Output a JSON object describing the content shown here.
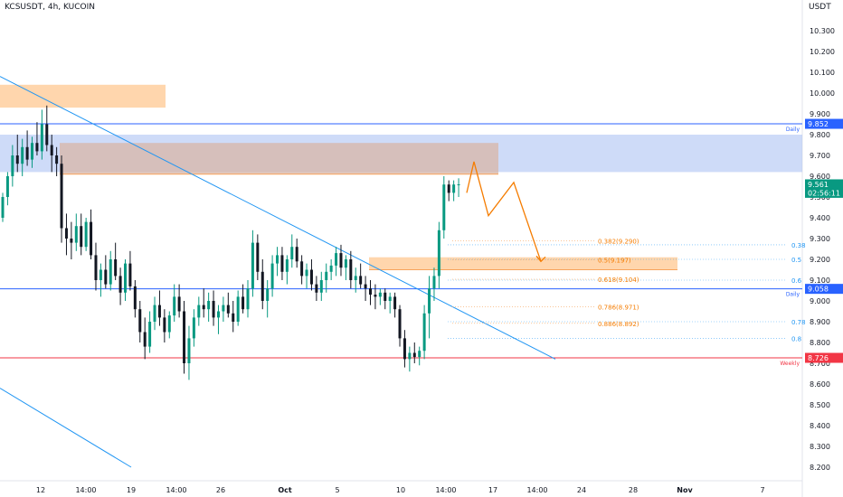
{
  "header": {
    "title": "KCSUSDT, 4h, KUCOIN",
    "unit": "USDT"
  },
  "chart_data": {
    "type": "candlestick",
    "symbol": "KCSUSDT",
    "interval": "4h",
    "exchange": "KUCOIN",
    "ylim": [
      8.12,
      10.52
    ],
    "y_ticks": [
      "10.300",
      "10.200",
      "10.100",
      "10.000",
      "9.900",
      "9.800",
      "9.700",
      "9.600",
      "9.500",
      "9.400",
      "9.300",
      "9.200",
      "9.100",
      "9.000",
      "8.900",
      "8.800",
      "8.700",
      "8.600",
      "8.500",
      "8.400",
      "8.300",
      "8.200"
    ],
    "x_ticks": [
      "12",
      "14:00",
      "19",
      "14:00",
      "26",
      "Oct",
      "5",
      "10",
      "14:00",
      "17",
      "14:00",
      "24",
      "28",
      "Nov",
      "7"
    ],
    "price_labels": [
      {
        "text": "9.852",
        "price": 9.852,
        "color": "#2962ff",
        "tag": "Daily"
      },
      {
        "text": "9.561",
        "price": 9.561,
        "color": "#089981"
      },
      {
        "text": "02:56:11",
        "price": 9.52,
        "color": "#089981"
      },
      {
        "text": "9.058",
        "price": 9.058,
        "color": "#2962ff",
        "tag": "Daily"
      },
      {
        "text": "8.726",
        "price": 8.726,
        "color": "#f23645",
        "tag": "Weekly"
      }
    ],
    "fib_levels": [
      {
        "ratio": "0.382",
        "text": "0.382(9.290)",
        "price": 9.29
      },
      {
        "ratio": "0.5",
        "text": "0.5(9.197)",
        "price": 9.197
      },
      {
        "ratio": "0.618",
        "text": "0.618(9.104)",
        "price": 9.104
      },
      {
        "ratio": "0.786",
        "text": "0.786(8.971)",
        "price": 8.971
      },
      {
        "ratio": "0.886",
        "text": "0.886(8.892)",
        "price": 8.892
      }
    ],
    "blue_fib_partial_labels": [
      "0.38",
      "0.5",
      "0.6",
      "0.78",
      "0.8"
    ],
    "zones": [
      {
        "name": "upper-demand-zone",
        "color": "#ffcc99",
        "price_high": 10.04,
        "price_low": 9.93
      },
      {
        "name": "resistance-zone",
        "color": "#b3c8f5",
        "price_high": 9.8,
        "price_low": 9.62
      },
      {
        "name": "brown-zone",
        "color": "#d8b5a7",
        "price_high": 9.76,
        "price_low": 9.61
      },
      {
        "name": "fib-zone",
        "color": "#ffcc99",
        "price_high": 9.21,
        "price_low": 9.15
      }
    ],
    "horizontal_lines": [
      {
        "price": 9.852,
        "color": "#2962ff"
      },
      {
        "price": 9.058,
        "color": "#2962ff"
      },
      {
        "price": 8.726,
        "color": "#f23645"
      }
    ],
    "projection_path": [
      9.52,
      9.67,
      9.41,
      9.57,
      9.19
    ],
    "candles": [
      [
        9.4,
        9.52,
        9.38,
        9.5
      ],
      [
        9.5,
        9.62,
        9.46,
        9.6
      ],
      [
        9.6,
        9.75,
        9.55,
        9.7
      ],
      [
        9.7,
        9.8,
        9.62,
        9.66
      ],
      [
        9.66,
        9.78,
        9.6,
        9.74
      ],
      [
        9.74,
        9.82,
        9.65,
        9.68
      ],
      [
        9.68,
        9.79,
        9.64,
        9.76
      ],
      [
        9.76,
        9.86,
        9.7,
        9.72
      ],
      [
        9.72,
        9.92,
        9.68,
        9.85
      ],
      [
        9.85,
        9.94,
        9.72,
        9.75
      ],
      [
        9.75,
        9.8,
        9.62,
        9.7
      ],
      [
        9.7,
        9.74,
        9.6,
        9.66
      ],
      [
        9.66,
        9.7,
        9.28,
        9.35
      ],
      [
        9.35,
        9.42,
        9.22,
        9.3
      ],
      [
        9.3,
        9.38,
        9.2,
        9.28
      ],
      [
        9.28,
        9.42,
        9.24,
        9.36
      ],
      [
        9.36,
        9.42,
        9.22,
        9.26
      ],
      [
        9.26,
        9.4,
        9.24,
        9.38
      ],
      [
        9.38,
        9.44,
        9.2,
        9.22
      ],
      [
        9.22,
        9.28,
        9.05,
        9.1
      ],
      [
        9.1,
        9.18,
        9.02,
        9.15
      ],
      [
        9.15,
        9.22,
        9.06,
        9.08
      ],
      [
        9.08,
        9.24,
        9.05,
        9.2
      ],
      [
        9.2,
        9.28,
        9.1,
        9.12
      ],
      [
        9.12,
        9.16,
        8.98,
        9.04
      ],
      [
        9.04,
        9.2,
        9.0,
        9.18
      ],
      [
        9.18,
        9.24,
        9.05,
        9.07
      ],
      [
        9.07,
        9.1,
        8.92,
        8.96
      ],
      [
        8.96,
        9.0,
        8.8,
        8.85
      ],
      [
        8.85,
        8.92,
        8.72,
        8.78
      ],
      [
        8.78,
        8.95,
        8.75,
        8.9
      ],
      [
        8.9,
        9.02,
        8.86,
        8.98
      ],
      [
        8.98,
        9.05,
        8.88,
        8.92
      ],
      [
        8.92,
        8.96,
        8.8,
        8.85
      ],
      [
        8.85,
        8.95,
        8.82,
        8.93
      ],
      [
        8.93,
        9.08,
        8.9,
        9.02
      ],
      [
        9.02,
        9.08,
        8.92,
        8.95
      ],
      [
        8.95,
        9.0,
        8.65,
        8.7
      ],
      [
        8.7,
        8.88,
        8.62,
        8.82
      ],
      [
        8.82,
        8.96,
        8.78,
        8.92
      ],
      [
        8.92,
        9.02,
        8.88,
        8.98
      ],
      [
        8.98,
        9.06,
        8.92,
        8.96
      ],
      [
        8.96,
        9.04,
        8.9,
        9.0
      ],
      [
        9.0,
        9.05,
        8.88,
        8.92
      ],
      [
        8.92,
        8.98,
        8.84,
        8.95
      ],
      [
        8.95,
        9.02,
        8.9,
        8.98
      ],
      [
        8.98,
        9.04,
        8.92,
        8.94
      ],
      [
        8.94,
        9.0,
        8.85,
        8.9
      ],
      [
        8.9,
        9.05,
        8.88,
        9.02
      ],
      [
        9.02,
        9.08,
        8.94,
        8.96
      ],
      [
        8.96,
        9.1,
        8.92,
        9.06
      ],
      [
        9.06,
        9.34,
        9.02,
        9.28
      ],
      [
        9.28,
        9.32,
        9.1,
        9.14
      ],
      [
        9.14,
        9.2,
        8.96,
        9.0
      ],
      [
        9.0,
        9.1,
        8.92,
        9.06
      ],
      [
        9.06,
        9.22,
        9.02,
        9.18
      ],
      [
        9.18,
        9.26,
        9.12,
        9.22
      ],
      [
        9.22,
        9.26,
        9.1,
        9.14
      ],
      [
        9.14,
        9.22,
        9.08,
        9.2
      ],
      [
        9.2,
        9.32,
        9.16,
        9.26
      ],
      [
        9.26,
        9.3,
        9.16,
        9.19
      ],
      [
        9.19,
        9.22,
        9.08,
        9.12
      ],
      [
        9.12,
        9.18,
        9.06,
        9.15
      ],
      [
        9.15,
        9.2,
        9.05,
        9.08
      ],
      [
        9.08,
        9.12,
        9.0,
        9.04
      ],
      [
        9.04,
        9.14,
        9.0,
        9.1
      ],
      [
        9.1,
        9.18,
        9.04,
        9.14
      ],
      [
        9.14,
        9.2,
        9.1,
        9.17
      ],
      [
        9.17,
        9.26,
        9.12,
        9.23
      ],
      [
        9.23,
        9.27,
        9.12,
        9.16
      ],
      [
        9.16,
        9.22,
        9.1,
        9.2
      ],
      [
        9.2,
        9.24,
        9.06,
        9.1
      ],
      [
        9.1,
        9.16,
        9.04,
        9.12
      ],
      [
        9.12,
        9.18,
        9.06,
        9.08
      ],
      [
        9.08,
        9.12,
        9.0,
        9.06
      ],
      [
        9.06,
        9.1,
        8.98,
        9.03
      ],
      [
        9.03,
        9.08,
        8.96,
        9.02
      ],
      [
        9.02,
        9.06,
        8.98,
        9.04
      ],
      [
        9.04,
        9.06,
        8.96,
        9.0
      ],
      [
        9.0,
        9.04,
        8.94,
        9.02
      ],
      [
        9.02,
        9.04,
        8.92,
        8.96
      ],
      [
        8.96,
        8.98,
        8.78,
        8.82
      ],
      [
        8.82,
        8.86,
        8.68,
        8.72
      ],
      [
        8.72,
        8.78,
        8.66,
        8.75
      ],
      [
        8.75,
        8.8,
        8.7,
        8.73
      ],
      [
        8.73,
        8.78,
        8.69,
        8.76
      ],
      [
        8.76,
        8.98,
        8.72,
        8.94
      ],
      [
        8.94,
        9.12,
        8.82,
        9.06
      ],
      [
        9.06,
        9.16,
        9.0,
        9.12
      ],
      [
        9.12,
        9.38,
        9.06,
        9.34
      ],
      [
        9.34,
        9.6,
        9.3,
        9.56
      ],
      [
        9.56,
        9.58,
        9.48,
        9.52
      ],
      [
        9.52,
        9.58,
        9.48,
        9.56
      ],
      [
        9.56,
        9.59,
        9.5,
        9.561
      ]
    ]
  }
}
